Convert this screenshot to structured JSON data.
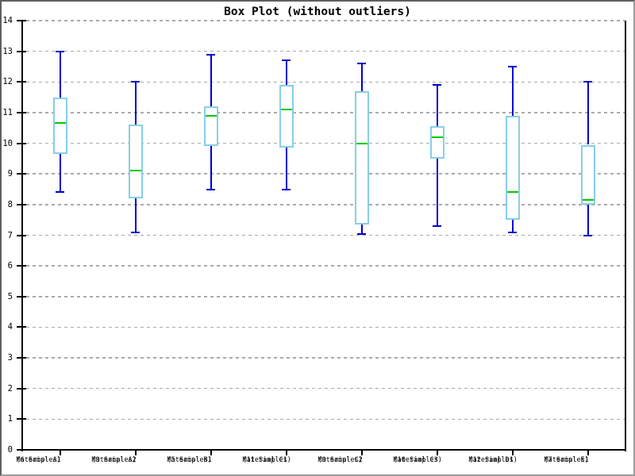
{
  "title": "Box Plot (without outliers)",
  "chart_data": {
    "type": "boxplot",
    "title": "Box Plot (without outliers)",
    "legend": "none",
    "grid": "horizontal-dashed",
    "y_axis": {
      "min": 0,
      "max": 14,
      "tick_step": 1,
      "tick_labels": [
        "0",
        "1",
        "2",
        "3",
        "4",
        "5",
        "6",
        "7",
        "8",
        "9",
        "10",
        "11",
        "12",
        "13",
        "14"
      ]
    },
    "boxes": [
      {
        "label": "Material A1",
        "sublabel": "(6 Samples)",
        "samples": 6,
        "whisker_low": 8.4,
        "q1": 9.65,
        "median": 10.65,
        "q3": 11.5,
        "whisker_high": 13.0
      },
      {
        "label": "Material A2",
        "sublabel": "(9 Samples)",
        "samples": 9,
        "whisker_low": 7.1,
        "q1": 8.2,
        "median": 9.1,
        "q3": 10.6,
        "whisker_high": 12.0
      },
      {
        "label": "Material B1",
        "sublabel": "(5 Samples)",
        "samples": 5,
        "whisker_low": 8.5,
        "q1": 9.9,
        "median": 10.9,
        "q3": 11.2,
        "whisker_high": 12.9
      },
      {
        "label": "Material C1",
        "sublabel": "(11 Samples)",
        "samples": 11,
        "whisker_low": 8.5,
        "q1": 9.85,
        "median": 11.1,
        "q3": 11.9,
        "whisker_high": 12.7
      },
      {
        "label": "Material C2",
        "sublabel": "(9 Samples)",
        "samples": 9,
        "whisker_low": 7.05,
        "q1": 7.35,
        "median": 10.0,
        "q3": 11.7,
        "whisker_high": 12.6
      },
      {
        "label": "Material C3",
        "sublabel": "(10 Samples)",
        "samples": 10,
        "whisker_low": 7.3,
        "q1": 9.5,
        "median": 10.2,
        "q3": 10.55,
        "whisker_high": 11.9
      },
      {
        "label": "Material D1",
        "sublabel": "(12 Samples)",
        "samples": 12,
        "whisker_low": 7.1,
        "q1": 7.5,
        "median": 8.4,
        "q3": 10.9,
        "whisker_high": 12.5
      },
      {
        "label": "Material E1",
        "sublabel": "(7 Samples)",
        "samples": 7,
        "whisker_low": 7.0,
        "q1": 8.0,
        "median": 8.15,
        "q3": 9.95,
        "whisker_high": 12.0
      }
    ],
    "colors": {
      "box_border": "#87CEEB",
      "box_fill": "#FFFFFF",
      "whisker": "#0000CC",
      "median": "#00CC00",
      "grid": "#AAAAAA",
      "axis": "#000000",
      "background": "#FFFFFF"
    }
  }
}
